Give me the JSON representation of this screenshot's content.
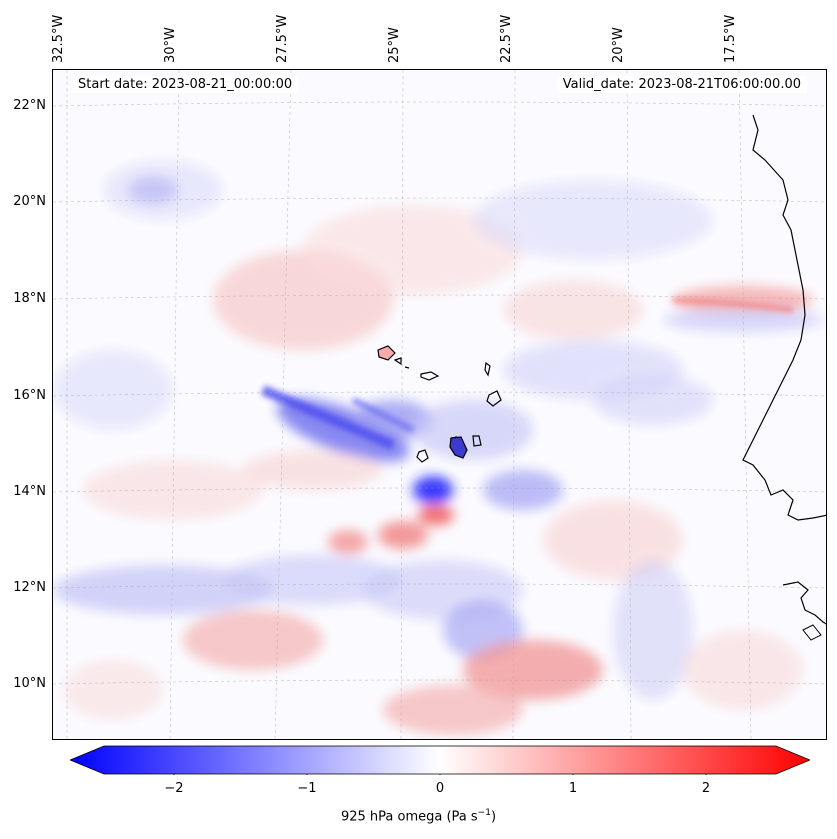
{
  "map": {
    "start_date": "Start date: 2023-08-21_00:00:00",
    "valid_date": "Valid_date: 2023-08-21T06:00:00.00",
    "longitude_labels": [
      "32.5°W",
      "30°W",
      "27.5°W",
      "25°W",
      "22.5°W",
      "20°W",
      "17.5°W"
    ],
    "latitude_labels": [
      "22°N",
      "20°N",
      "18°N",
      "16°N",
      "14°N",
      "12°N",
      "10°N"
    ],
    "colorbar": {
      "ticks": [
        "−2",
        "−1",
        "0",
        "1",
        "2"
      ],
      "label": "925 hPa omega (Pa s",
      "label_superscript": "−1",
      "label_suffix": ")",
      "range": [
        -2.6,
        2.6
      ],
      "colormap": "bwr"
    },
    "colors": {
      "negative": "#0000ff",
      "zero": "#ffffff",
      "positive": "#ff0000",
      "coast": "#000000"
    }
  }
}
